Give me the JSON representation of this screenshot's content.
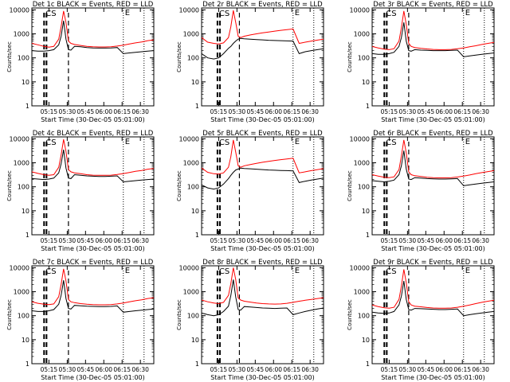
{
  "colors": {
    "events": "#000000",
    "lld": "#ff0000",
    "axes": "#000000",
    "background": "#ffffff"
  },
  "shared": {
    "xlabel": "Start Time (30-Dec-05 05:01:00)",
    "ylabel": "Counts/sec",
    "x_tick_labels": [
      "05:15",
      "05:30",
      "05:45",
      "06:00",
      "06:15",
      "06:30"
    ],
    "x_ticks_min": [
      14,
      29,
      44,
      59,
      74,
      89
    ],
    "xlim_min": [
      0,
      100
    ],
    "y_tick_labels": [
      "1",
      "10",
      "100",
      "1000",
      "10000"
    ],
    "y_ticks": [
      1,
      10,
      100,
      1000,
      10000
    ],
    "ylim": [
      1,
      12000
    ],
    "y_scale": "log",
    "dotted_lines_min": [
      75,
      92
    ],
    "legend_text": "BLACK = Events, RED = LLD"
  },
  "chart_data": [
    {
      "type": "line",
      "title": "Det 1c",
      "corner_labels": [
        "CS",
        "E"
      ],
      "dashed_lines_min": [
        10,
        12,
        30
      ],
      "x": [
        0,
        5,
        10,
        14,
        18,
        22,
        24,
        26,
        28,
        30,
        32,
        35,
        40,
        45,
        50,
        55,
        60,
        65,
        70,
        75,
        80,
        85,
        90,
        95,
        100
      ],
      "series": [
        {
          "name": "BLACK = Events",
          "values": [
            200,
            190,
            190,
            200,
            220,
            350,
            800,
            3500,
            600,
            220,
            210,
            300,
            290,
            270,
            260,
            255,
            255,
            260,
            270,
            150,
            160,
            170,
            180,
            190,
            200
          ]
        },
        {
          "name": "RED = LLD",
          "values": [
            400,
            350,
            300,
            280,
            300,
            600,
            2000,
            9000,
            3000,
            500,
            400,
            360,
            330,
            300,
            290,
            285,
            285,
            290,
            310,
            340,
            380,
            420,
            460,
            520,
            560
          ]
        }
      ]
    },
    {
      "type": "line",
      "title": "Det 2r",
      "corner_labels": [
        "CS",
        "E"
      ],
      "dashed_lines_min": [
        13,
        15,
        31
      ],
      "x": [
        0,
        5,
        10,
        14,
        18,
        22,
        24,
        26,
        28,
        30,
        32,
        35,
        40,
        45,
        50,
        55,
        60,
        65,
        70,
        75,
        80,
        85,
        90,
        95,
        100
      ],
      "series": [
        {
          "name": "BLACK = Events",
          "values": [
            150,
            100,
            90,
            100,
            150,
            250,
            300,
            400,
            500,
            600,
            650,
            620,
            600,
            580,
            560,
            540,
            530,
            520,
            510,
            500,
            150,
            180,
            200,
            220,
            240
          ]
        },
        {
          "name": "RED = LLD",
          "values": [
            700,
            450,
            400,
            380,
            420,
            700,
            2000,
            9500,
            3000,
            800,
            700,
            800,
            900,
            1000,
            1100,
            1200,
            1300,
            1400,
            1500,
            1600,
            400,
            450,
            500,
            550,
            600
          ]
        }
      ]
    },
    {
      "type": "line",
      "title": "Det 3r",
      "corner_labels": [
        "CS",
        "E"
      ],
      "dashed_lines_min": [
        10,
        12,
        30
      ],
      "x": [
        0,
        5,
        10,
        14,
        18,
        22,
        24,
        26,
        28,
        30,
        32,
        35,
        40,
        45,
        50,
        55,
        60,
        65,
        70,
        75,
        80,
        85,
        90,
        95,
        100
      ],
      "series": [
        {
          "name": "BLACK = Events",
          "values": [
            150,
            140,
            140,
            150,
            170,
            300,
            700,
            3000,
            500,
            200,
            190,
            220,
            210,
            205,
            200,
            200,
            200,
            205,
            210,
            110,
            120,
            130,
            140,
            150,
            160
          ]
        },
        {
          "name": "RED = LLD",
          "values": [
            300,
            260,
            230,
            220,
            240,
            500,
            1800,
            9000,
            2500,
            400,
            300,
            270,
            250,
            235,
            225,
            220,
            220,
            225,
            240,
            260,
            290,
            320,
            360,
            400,
            440
          ]
        }
      ]
    },
    {
      "type": "line",
      "title": "Det 4c",
      "corner_labels": [
        "CS",
        "E"
      ],
      "dashed_lines_min": [
        10,
        12,
        30
      ],
      "x": [
        0,
        5,
        10,
        14,
        18,
        22,
        24,
        26,
        28,
        30,
        32,
        35,
        40,
        45,
        50,
        55,
        60,
        65,
        70,
        75,
        80,
        85,
        90,
        95,
        100
      ],
      "series": [
        {
          "name": "BLACK = Events",
          "values": [
            220,
            210,
            200,
            210,
            230,
            380,
            900,
            3500,
            600,
            230,
            220,
            320,
            300,
            285,
            275,
            270,
            270,
            275,
            285,
            160,
            170,
            180,
            190,
            200,
            210
          ]
        },
        {
          "name": "RED = LLD",
          "values": [
            420,
            360,
            320,
            300,
            320,
            650,
            2100,
            9500,
            3000,
            520,
            420,
            380,
            350,
            320,
            305,
            300,
            300,
            305,
            325,
            355,
            395,
            440,
            480,
            540,
            580
          ]
        }
      ]
    },
    {
      "type": "line",
      "title": "Det 5r",
      "corner_labels": [
        "CS",
        "E"
      ],
      "dashed_lines_min": [
        13,
        15,
        31
      ],
      "x": [
        0,
        5,
        10,
        14,
        18,
        22,
        24,
        26,
        28,
        30,
        32,
        35,
        40,
        45,
        50,
        55,
        60,
        65,
        70,
        75,
        80,
        85,
        90,
        95,
        100
      ],
      "series": [
        {
          "name": "BLACK = Events",
          "values": [
            120,
            90,
            80,
            90,
            130,
            220,
            300,
            400,
            500,
            550,
            600,
            580,
            560,
            540,
            520,
            500,
            490,
            480,
            470,
            460,
            150,
            170,
            190,
            210,
            230
          ]
        },
        {
          "name": "RED = LLD",
          "values": [
            600,
            400,
            350,
            340,
            380,
            650,
            1800,
            9000,
            2800,
            750,
            650,
            750,
            850,
            950,
            1050,
            1150,
            1250,
            1350,
            1450,
            1550,
            380,
            420,
            470,
            520,
            570
          ]
        }
      ]
    },
    {
      "type": "line",
      "title": "Det 6r",
      "corner_labels": [
        "CS",
        "E"
      ],
      "dashed_lines_min": [
        10,
        12,
        30
      ],
      "x": [
        0,
        5,
        10,
        14,
        18,
        22,
        24,
        26,
        28,
        30,
        32,
        35,
        40,
        45,
        50,
        55,
        60,
        65,
        70,
        75,
        80,
        85,
        90,
        95,
        100
      ],
      "series": [
        {
          "name": "BLACK = Events",
          "values": [
            180,
            170,
            160,
            170,
            190,
            320,
            750,
            3200,
            550,
            210,
            200,
            240,
            230,
            220,
            215,
            210,
            210,
            215,
            220,
            110,
            120,
            130,
            140,
            150,
            160
          ]
        },
        {
          "name": "RED = LLD",
          "values": [
            320,
            280,
            250,
            240,
            260,
            520,
            1900,
            9000,
            2600,
            420,
            320,
            290,
            270,
            250,
            240,
            235,
            235,
            240,
            255,
            280,
            310,
            350,
            390,
            430,
            470
          ]
        }
      ]
    },
    {
      "type": "line",
      "title": "Det 7c",
      "corner_labels": [
        "CS",
        "E"
      ],
      "dashed_lines_min": [
        10,
        12,
        30
      ],
      "x": [
        0,
        5,
        10,
        14,
        18,
        22,
        24,
        26,
        28,
        30,
        32,
        35,
        40,
        45,
        50,
        55,
        60,
        65,
        70,
        75,
        80,
        85,
        90,
        95,
        100
      ],
      "series": [
        {
          "name": "BLACK = Events",
          "values": [
            160,
            150,
            150,
            160,
            180,
            300,
            700,
            3000,
            520,
            200,
            190,
            270,
            260,
            250,
            245,
            240,
            240,
            245,
            255,
            140,
            150,
            160,
            170,
            180,
            190
          ]
        },
        {
          "name": "RED = LLD",
          "values": [
            380,
            330,
            300,
            290,
            310,
            620,
            2000,
            9000,
            2800,
            480,
            380,
            350,
            320,
            300,
            290,
            285,
            285,
            290,
            310,
            340,
            380,
            420,
            460,
            520,
            560
          ]
        }
      ]
    },
    {
      "type": "line",
      "title": "Det 8r",
      "corner_labels": [
        "CS",
        "E"
      ],
      "dashed_lines_min": [
        13,
        15,
        31
      ],
      "x": [
        0,
        5,
        10,
        14,
        18,
        22,
        24,
        26,
        28,
        30,
        32,
        35,
        40,
        45,
        50,
        55,
        60,
        65,
        70,
        75,
        80,
        85,
        90,
        95,
        100
      ],
      "series": [
        {
          "name": "BLACK = Events",
          "values": [
            130,
            110,
            100,
            110,
            150,
            250,
            700,
            3200,
            600,
            180,
            170,
            240,
            230,
            220,
            210,
            205,
            200,
            205,
            210,
            110,
            130,
            150,
            170,
            190,
            210
          ]
        },
        {
          "name": "RED = LLD",
          "values": [
            450,
            380,
            340,
            320,
            360,
            700,
            2200,
            10000,
            3200,
            550,
            450,
            400,
            370,
            340,
            320,
            310,
            305,
            310,
            330,
            360,
            400,
            440,
            480,
            520,
            560
          ]
        }
      ]
    },
    {
      "type": "line",
      "title": "Det 9r",
      "corner_labels": [
        "CS",
        "E"
      ],
      "dashed_lines_min": [
        10,
        12,
        30
      ],
      "x": [
        0,
        5,
        10,
        14,
        18,
        22,
        24,
        26,
        28,
        30,
        32,
        35,
        40,
        45,
        50,
        55,
        60,
        65,
        70,
        75,
        80,
        85,
        90,
        95,
        100
      ],
      "series": [
        {
          "name": "BLACK = Events",
          "values": [
            140,
            130,
            125,
            130,
            150,
            280,
            650,
            2800,
            480,
            180,
            170,
            200,
            195,
            190,
            185,
            180,
            180,
            185,
            190,
            100,
            110,
            120,
            130,
            140,
            150
          ]
        },
        {
          "name": "RED = LLD",
          "values": [
            280,
            240,
            215,
            205,
            225,
            480,
            1700,
            8500,
            2400,
            380,
            280,
            250,
            235,
            220,
            210,
            205,
            205,
            210,
            225,
            250,
            280,
            320,
            360,
            400,
            440
          ]
        }
      ]
    }
  ]
}
